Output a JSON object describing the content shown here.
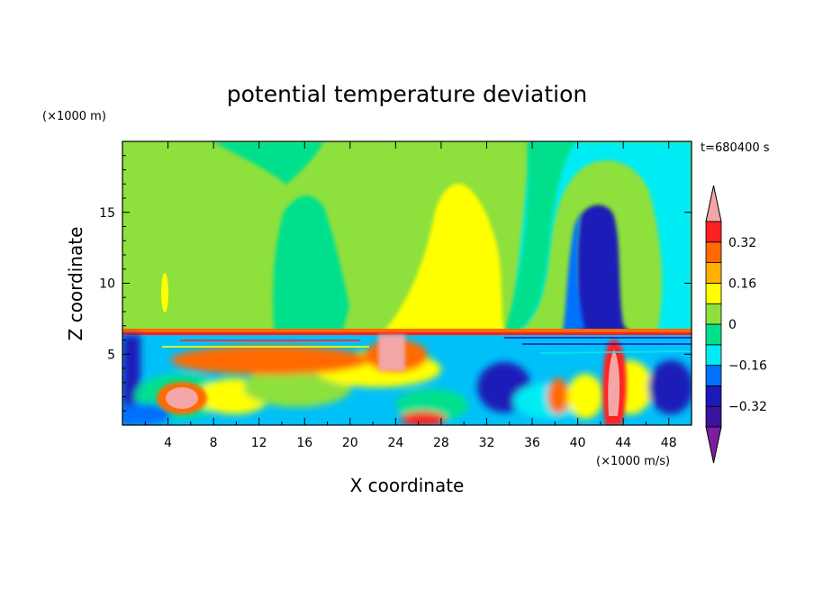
{
  "chart_data": {
    "type": "heatmap",
    "title": "potential temperature deviation",
    "xlabel": "X coordinate",
    "ylabel": "Z coordinate",
    "x_unit": "(×1000 m/s)",
    "y_unit": "(×1000 m)",
    "time_label": "t=680400 s",
    "xlim": [
      0,
      50
    ],
    "ylim": [
      0,
      20
    ],
    "x_ticks": [
      4,
      8,
      12,
      16,
      20,
      24,
      28,
      32,
      36,
      40,
      44,
      48
    ],
    "x_tick_labels": [
      "4",
      "8",
      "12",
      "16",
      "20",
      "24",
      "28",
      "32",
      "36",
      "40",
      "44",
      "48"
    ],
    "y_ticks": [
      5,
      10,
      15
    ],
    "y_tick_labels": [
      "5",
      "10",
      "15"
    ],
    "colorbar": {
      "levels": [
        -0.4,
        -0.32,
        -0.24,
        -0.16,
        -0.08,
        0,
        0.08,
        0.16,
        0.24,
        0.32,
        0.4
      ],
      "tick_values": [
        0.32,
        0.16,
        0,
        -0.16,
        -0.32
      ],
      "tick_labels": [
        "0.32",
        "0.16",
        "0",
        "−0.16",
        "−0.32"
      ],
      "colors": [
        "#7a1fa0",
        "#3a139d",
        "#1a1ab8",
        "#0070ff",
        "#00ecf4",
        "#00e08c",
        "#8ee03c",
        "#ffff00",
        "#ffb000",
        "#ff6a00",
        "#ff2020",
        "#f4a6a6"
      ]
    },
    "features": [
      {
        "name": "yellow plume",
        "x": [
          22,
          30
        ],
        "z": [
          6.5,
          17
        ],
        "value": 0.12
      },
      {
        "name": "blue column",
        "x": [
          39,
          45
        ],
        "z": [
          7,
          15.5
        ],
        "value": -0.28
      },
      {
        "name": "cyan upper region",
        "x": [
          34,
          48
        ],
        "z": [
          6.5,
          19.5
        ],
        "value": -0.12
      },
      {
        "name": "warm blob",
        "x": [
          3,
          8
        ],
        "z": [
          1,
          3.5
        ],
        "value": 0.42
      },
      {
        "name": "warm column",
        "x": [
          41,
          44
        ],
        "z": [
          0.3,
          6
        ],
        "value": 0.38
      },
      {
        "name": "inversion layer",
        "z": 6.5,
        "value": 0.3
      }
    ]
  }
}
